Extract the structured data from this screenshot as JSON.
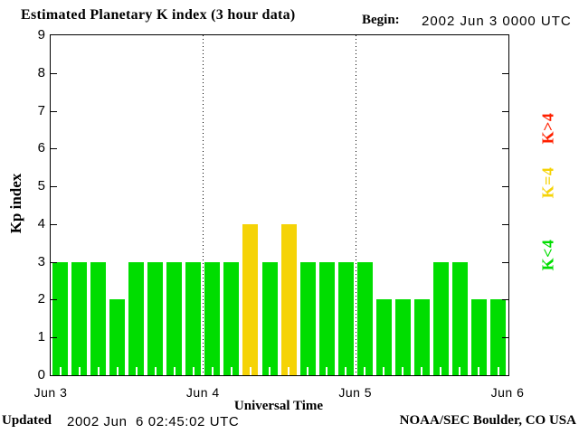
{
  "title": "Estimated Planetary K index (3 hour data)",
  "begin": {
    "label": "Begin:",
    "value": "2002 Jun 3 0000 UTC"
  },
  "footer": {
    "updated_label": "Updated",
    "updated_value": "2002 Jun  6 02:45:02 UTC",
    "source": "NOAA/SEC Boulder, CO USA"
  },
  "colors": {
    "background": "#FFFFFF",
    "axis": "#000000",
    "bar_green": "#00DD00",
    "bar_yellow": "#F5D306",
    "legend_red": "#FF2000"
  },
  "chart_data": {
    "type": "bar",
    "title": "Estimated Planetary K index (3 hour data)",
    "xlabel": "Universal Time",
    "ylabel": "Kp index",
    "begin": "2002 Jun 3 0000 UTC",
    "interval_hours": 3,
    "ylim": [
      0,
      9
    ],
    "yticks": [
      0,
      1,
      2,
      3,
      4,
      5,
      6,
      7,
      8,
      9
    ],
    "x_tick_labels": [
      "Jun 3",
      "Jun 4",
      "Jun 5",
      "Jun 6"
    ],
    "values": [
      3,
      3,
      3,
      2,
      3,
      3,
      3,
      3,
      3,
      3,
      4,
      3,
      4,
      3,
      3,
      3,
      3,
      2,
      2,
      2,
      3,
      3,
      2,
      2
    ],
    "color_rule": "K<4 green, K=4 yellow, K>4 red",
    "legend": [
      {
        "label": "K>4",
        "color": "#FF2000"
      },
      {
        "label": "K=4",
        "color": "#F5D306"
      },
      {
        "label": "K<4",
        "color": "#00DD00"
      }
    ],
    "grid": "vertical dotted lines at day boundaries (Jun 4, Jun 5)",
    "legend_position": "right-outside-rotated"
  }
}
